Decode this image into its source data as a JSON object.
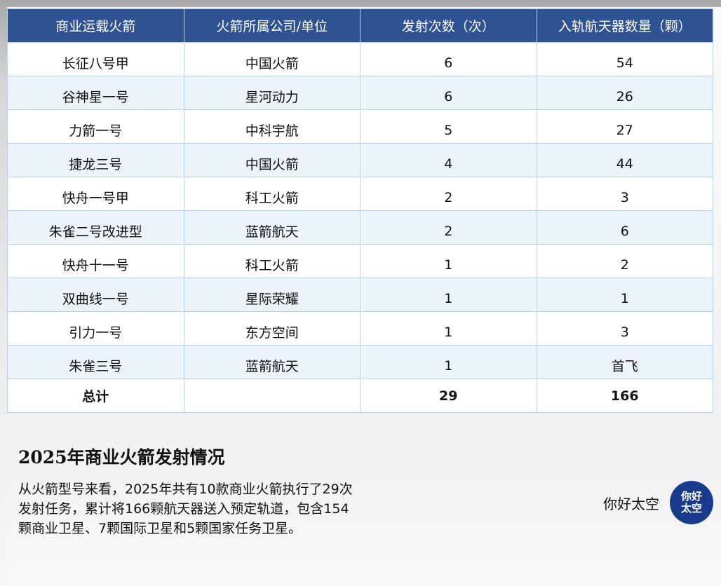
{
  "table": {
    "headers": [
      "商业运载火箭",
      "火箭所属公司/单位",
      "发射次数（次）",
      "入轨航天器数量（颗）"
    ],
    "rows": [
      [
        "长征八号甲",
        "中国火箭",
        "6",
        "54"
      ],
      [
        "谷神星一号",
        "星河动力",
        "6",
        "26"
      ],
      [
        "力箭一号",
        "中科宇航",
        "5",
        "27"
      ],
      [
        "捷龙三号",
        "中国火箭",
        "4",
        "44"
      ],
      [
        "快舟一号甲",
        "科工火箭",
        "2",
        "3"
      ],
      [
        "朱雀二号改进型",
        "蓝箭航天",
        "2",
        "6"
      ],
      [
        "快舟十一号",
        "科工火箭",
        "1",
        "2"
      ],
      [
        "双曲线一号",
        "星际荣耀",
        "1",
        "1"
      ],
      [
        "引力一号",
        "东方空间",
        "1",
        "3"
      ],
      [
        "朱雀三号",
        "蓝箭航天",
        "1",
        "首飞"
      ]
    ],
    "total": [
      "总计",
      "",
      "29",
      "166"
    ]
  },
  "title": "2025年商业火箭发射情况",
  "description": "从火箭型号来看，2025年共有10款商业火箭执行了29次发射任务，累计将166颗航天器送入预定轨道，包含154颗商业卫星、7颗国际卫星和5颗国家任务卫星。",
  "brand": {
    "name": "你好太空",
    "logo_text": "你好太空",
    "logo_color": "#1a3a8c"
  },
  "colors": {
    "header": "#2f5292",
    "stripe": "#edf3fb",
    "border": "#b9d3ee"
  }
}
